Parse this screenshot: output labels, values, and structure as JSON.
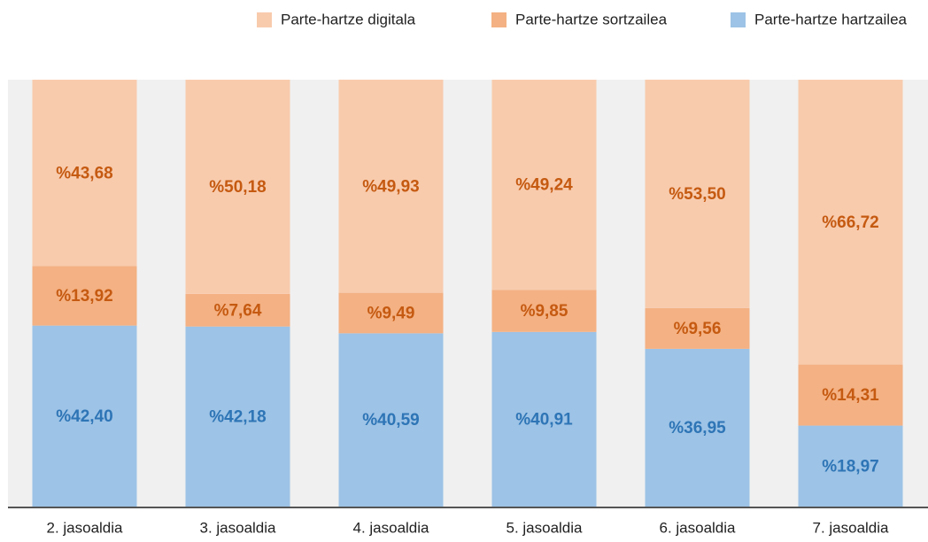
{
  "chart_data": {
    "type": "stacked_bar",
    "categories": [
      "2. jasoaldia",
      "3. jasoaldia",
      "4. jasoaldia",
      "5. jasoaldia",
      "6. jasoaldia",
      "7. jasoaldia"
    ],
    "series": [
      {
        "name": "Parte-hartze digitala",
        "color": "#f8cbad",
        "label_color": "#c55a11",
        "values": [
          43.68,
          50.18,
          49.93,
          49.24,
          53.5,
          66.72
        ],
        "value_labels": [
          "%43,68",
          "%50,18",
          "%49,93",
          "%49,24",
          "%53,50",
          "%66,72"
        ]
      },
      {
        "name": "Parte-hartze sortzailea",
        "color": "#f4b183",
        "label_color": "#c55a11",
        "values": [
          13.92,
          7.64,
          9.49,
          9.85,
          9.56,
          14.31
        ],
        "value_labels": [
          "%13,92",
          "%7,64",
          "%9,49",
          "%9,85",
          "%9,56",
          "%14,31"
        ]
      },
      {
        "name": "Parte-hartze hartzailea",
        "color": "#9dc3e6",
        "label_color": "#2e75b6",
        "values": [
          42.4,
          42.18,
          40.59,
          40.91,
          36.95,
          18.97
        ],
        "value_labels": [
          "%42,40",
          "%42,18",
          "%40,59",
          "%40,91",
          "%36,95",
          "%18,97"
        ]
      }
    ],
    "ylim": [
      0,
      100
    ],
    "legend": "top-right"
  }
}
